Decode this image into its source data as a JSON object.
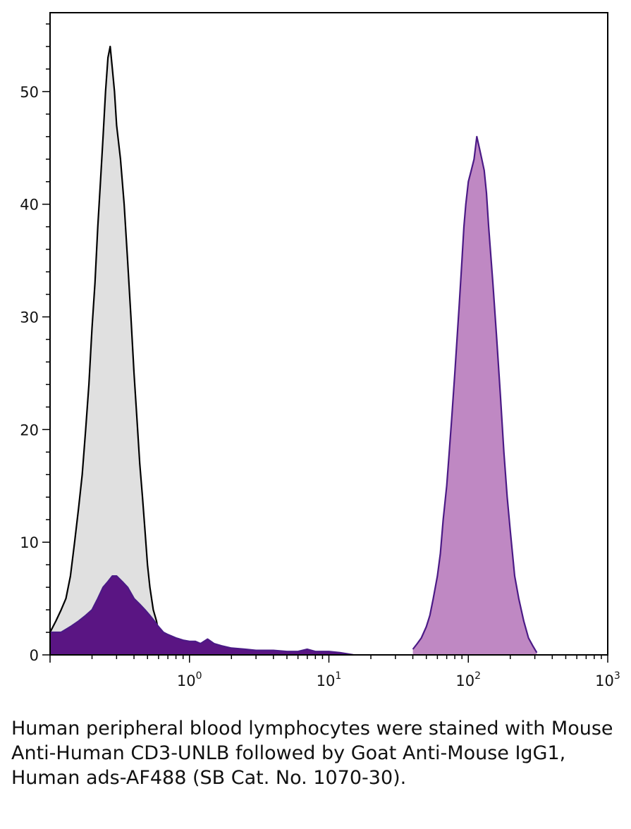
{
  "chart_data": {
    "type": "area",
    "title": "",
    "xlabel": "",
    "ylabel": "",
    "x_scale": "log",
    "xlim": [
      0.1,
      1000
    ],
    "ylim": [
      0,
      57
    ],
    "x_ticks": [
      {
        "base": "10",
        "exp": "0",
        "value": 1
      },
      {
        "base": "10",
        "exp": "1",
        "value": 10
      },
      {
        "base": "10",
        "exp": "2",
        "value": 100
      },
      {
        "base": "10",
        "exp": "3",
        "value": 1000
      }
    ],
    "y_ticks": [
      "0",
      "10",
      "20",
      "30",
      "40",
      "50"
    ],
    "grid": false,
    "legend": "none",
    "series": [
      {
        "key": "isotype",
        "fill": "#e0e0e0",
        "stroke": "#000000",
        "x": [
          0.1,
          0.11,
          0.12,
          0.13,
          0.14,
          0.15,
          0.16,
          0.17,
          0.18,
          0.19,
          0.2,
          0.21,
          0.22,
          0.23,
          0.24,
          0.25,
          0.26,
          0.27,
          0.28,
          0.29,
          0.3,
          0.32,
          0.34,
          0.36,
          0.38,
          0.4,
          0.42,
          0.44,
          0.46,
          0.48,
          0.5,
          0.52,
          0.55,
          0.58,
          0.6,
          0.63,
          0.66,
          0.7
        ],
        "y": [
          2,
          3,
          4,
          5,
          7,
          10,
          13,
          16,
          20,
          24,
          29,
          33,
          38,
          42,
          46,
          50,
          53,
          54,
          52,
          50,
          47,
          44,
          40,
          35,
          30,
          25,
          21,
          17,
          14,
          11,
          8,
          6,
          4,
          3,
          2,
          1.2,
          0.6,
          0
        ]
      },
      {
        "key": "stained",
        "fill": "#bf88c3",
        "stroke": "#4b1a86",
        "x": [
          40,
          43,
          46,
          50,
          53,
          56,
          60,
          63,
          66,
          70,
          73,
          76,
          80,
          83,
          86,
          90,
          93,
          96,
          100,
          105,
          110,
          115,
          120,
          125,
          130,
          135,
          140,
          150,
          160,
          170,
          180,
          190,
          200,
          215,
          230,
          250,
          270,
          290,
          310
        ],
        "y": [
          0.5,
          1,
          1.5,
          2.5,
          3.5,
          5,
          7,
          9,
          12,
          15,
          18,
          21,
          25,
          28,
          31,
          35,
          38,
          40,
          42,
          43,
          44,
          46,
          45,
          44,
          43,
          41,
          38,
          33,
          28,
          23,
          18,
          14,
          11,
          7,
          5,
          3,
          1.5,
          0.8,
          0.2
        ]
      },
      {
        "key": "unstained",
        "fill": "#5a1583",
        "stroke": "#4b1a86",
        "x": [
          0.1,
          0.12,
          0.14,
          0.16,
          0.18,
          0.2,
          0.22,
          0.24,
          0.26,
          0.28,
          0.3,
          0.33,
          0.36,
          0.4,
          0.44,
          0.48,
          0.52,
          0.56,
          0.6,
          0.65,
          0.7,
          0.8,
          0.9,
          1.0,
          1.1,
          1.2,
          1.35,
          1.5,
          1.7,
          2.0,
          2.5,
          3.0,
          4.0,
          5.0,
          6.0,
          7.0,
          8.0,
          10.0,
          12.0,
          15.0
        ],
        "y": [
          2,
          2,
          2.5,
          3,
          3.5,
          4,
          5,
          6,
          6.5,
          7,
          7,
          6.5,
          6,
          5,
          4.5,
          4,
          3.5,
          3,
          2.5,
          2,
          1.8,
          1.5,
          1.3,
          1.2,
          1.2,
          1.0,
          1.4,
          1.0,
          0.8,
          0.6,
          0.5,
          0.4,
          0.4,
          0.3,
          0.3,
          0.5,
          0.3,
          0.3,
          0.2,
          0
        ]
      }
    ]
  },
  "caption": "Human peripheral blood lymphocytes were stained with Mouse Anti-Human CD3-UNLB followed by Goat Anti-Mouse IgG1, Human ads-AF488 (SB Cat. No. 1070-30)."
}
